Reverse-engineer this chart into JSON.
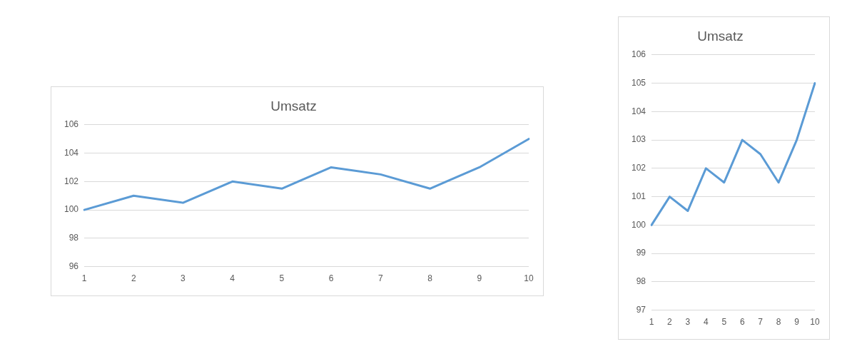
{
  "chart_data": [
    {
      "type": "line",
      "title": "Umsatz",
      "categories": [
        "1",
        "2",
        "3",
        "4",
        "5",
        "6",
        "7",
        "8",
        "9",
        "10"
      ],
      "series": [
        {
          "color": "#5b9bd5",
          "values": [
            100,
            101,
            100.5,
            102,
            101.5,
            103,
            102.5,
            101.5,
            103,
            105
          ]
        }
      ],
      "ylim": [
        96,
        106
      ],
      "yticks": [
        96,
        98,
        100,
        102,
        104,
        106
      ],
      "grid": "y",
      "legend": false,
      "marker": "none",
      "line_style": "solid"
    },
    {
      "type": "line",
      "title": "Umsatz",
      "categories": [
        "1",
        "2",
        "3",
        "4",
        "5",
        "6",
        "7",
        "8",
        "9",
        "10"
      ],
      "series": [
        {
          "color": "#5b9bd5",
          "values": [
            100,
            101,
            100.5,
            102,
            101.5,
            103,
            102.5,
            101.5,
            103,
            105
          ]
        }
      ],
      "ylim": [
        97,
        106
      ],
      "yticks": [
        97,
        98,
        99,
        100,
        101,
        102,
        103,
        104,
        105,
        106
      ],
      "grid": "y",
      "legend": false,
      "marker": "none",
      "line_style": "solid"
    }
  ]
}
